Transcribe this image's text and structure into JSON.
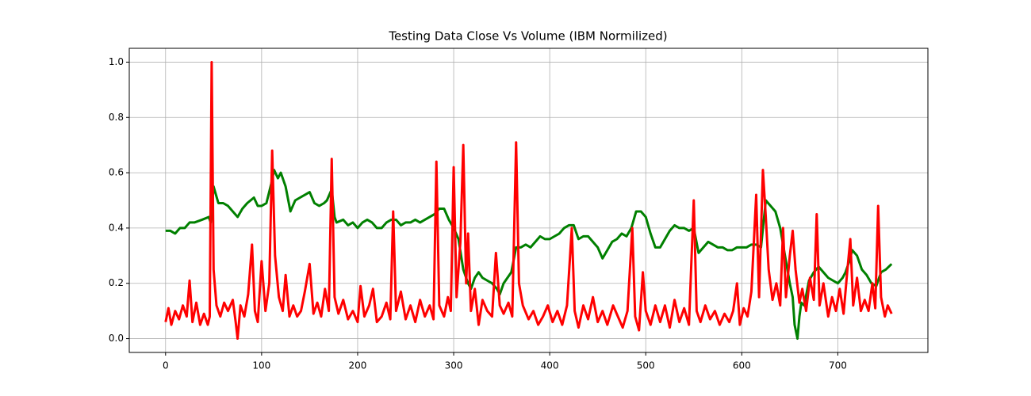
{
  "chart_data": {
    "type": "line",
    "title": "Testing Data Close Vs Volume (IBM Normilized)",
    "xlim": [
      -37.8,
      793.8
    ],
    "ylim": [
      -0.05,
      1.05
    ],
    "xticks": [
      0,
      100,
      200,
      300,
      400,
      500,
      600,
      700
    ],
    "yticks": [
      {
        "value": 0,
        "label": "0.0"
      },
      0.2,
      0.4,
      0.6,
      0.8,
      {
        "value": 1,
        "label": "1.0"
      }
    ],
    "grid": true,
    "series": [
      {
        "color": "#008000",
        "x": [
          0,
          5,
          10,
          15,
          20,
          25,
          30,
          38,
          45,
          47,
          50,
          55,
          60,
          65,
          70,
          75,
          80,
          85,
          92,
          96,
          100,
          105,
          110,
          113,
          117,
          120,
          125,
          130,
          135,
          140,
          145,
          150,
          155,
          160,
          165,
          168,
          173,
          176,
          178,
          185,
          190,
          195,
          200,
          205,
          210,
          215,
          220,
          225,
          230,
          235,
          240,
          245,
          250,
          255,
          260,
          265,
          270,
          275,
          280,
          285,
          290,
          295,
          300,
          305,
          310,
          315,
          318,
          322,
          326,
          330,
          335,
          340,
          345,
          348,
          352,
          356,
          360,
          365,
          370,
          375,
          380,
          385,
          390,
          395,
          400,
          405,
          410,
          415,
          420,
          425,
          430,
          435,
          440,
          445,
          450,
          455,
          460,
          465,
          470,
          475,
          480,
          485,
          490,
          495,
          500,
          505,
          510,
          515,
          520,
          525,
          530,
          535,
          540,
          545,
          550,
          555,
          560,
          565,
          570,
          575,
          580,
          585,
          590,
          595,
          600,
          605,
          610,
          615,
          620,
          625,
          630,
          635,
          640,
          645,
          650,
          653,
          655,
          658,
          660,
          662,
          665,
          670,
          675,
          680,
          685,
          690,
          695,
          700,
          705,
          708,
          712,
          715,
          720,
          725,
          730,
          735,
          740,
          745,
          750,
          756
        ],
        "values": [
          0.39,
          0.39,
          0.38,
          0.4,
          0.4,
          0.42,
          0.42,
          0.43,
          0.44,
          0.42,
          0.55,
          0.49,
          0.49,
          0.48,
          0.46,
          0.44,
          0.47,
          0.49,
          0.51,
          0.48,
          0.48,
          0.49,
          0.56,
          0.61,
          0.58,
          0.6,
          0.55,
          0.46,
          0.5,
          0.51,
          0.52,
          0.53,
          0.49,
          0.48,
          0.49,
          0.5,
          0.54,
          0.44,
          0.42,
          0.43,
          0.41,
          0.42,
          0.4,
          0.42,
          0.43,
          0.42,
          0.4,
          0.4,
          0.42,
          0.43,
          0.43,
          0.41,
          0.42,
          0.42,
          0.43,
          0.42,
          0.43,
          0.44,
          0.45,
          0.47,
          0.47,
          0.43,
          0.4,
          0.36,
          0.25,
          0.2,
          0.18,
          0.22,
          0.24,
          0.22,
          0.21,
          0.2,
          0.18,
          0.16,
          0.2,
          0.22,
          0.24,
          0.33,
          0.33,
          0.34,
          0.33,
          0.35,
          0.37,
          0.36,
          0.36,
          0.37,
          0.38,
          0.4,
          0.41,
          0.41,
          0.36,
          0.37,
          0.37,
          0.35,
          0.33,
          0.29,
          0.32,
          0.35,
          0.36,
          0.38,
          0.37,
          0.4,
          0.46,
          0.46,
          0.44,
          0.38,
          0.33,
          0.33,
          0.36,
          0.39,
          0.41,
          0.4,
          0.4,
          0.39,
          0.4,
          0.31,
          0.33,
          0.35,
          0.34,
          0.33,
          0.33,
          0.32,
          0.32,
          0.33,
          0.33,
          0.33,
          0.34,
          0.34,
          0.33,
          0.5,
          0.48,
          0.46,
          0.4,
          0.3,
          0.2,
          0.15,
          0.05,
          0.0,
          0.08,
          0.13,
          0.12,
          0.21,
          0.24,
          0.26,
          0.24,
          0.22,
          0.21,
          0.2,
          0.22,
          0.24,
          0.28,
          0.32,
          0.3,
          0.25,
          0.23,
          0.2,
          0.19,
          0.24,
          0.25,
          0.27
        ]
      },
      {
        "color": "#ff0000",
        "x": [
          0,
          3,
          6,
          10,
          14,
          18,
          22,
          25,
          28,
          32,
          36,
          40,
          44,
          46,
          48,
          50,
          53,
          57,
          61,
          65,
          70,
          73,
          75,
          78,
          82,
          86,
          90,
          93,
          96,
          100,
          104,
          108,
          111,
          114,
          118,
          122,
          125,
          129,
          133,
          137,
          141,
          145,
          150,
          154,
          158,
          162,
          166,
          170,
          173,
          176,
          180,
          185,
          190,
          195,
          200,
          203,
          207,
          212,
          216,
          220,
          225,
          230,
          234,
          237,
          240,
          245,
          250,
          255,
          260,
          265,
          270,
          275,
          279,
          282,
          285,
          290,
          294,
          297,
          300,
          303,
          307,
          310,
          313,
          315,
          318,
          322,
          326,
          330,
          335,
          340,
          344,
          348,
          352,
          357,
          361,
          365,
          368,
          372,
          378,
          383,
          388,
          393,
          398,
          403,
          408,
          413,
          418,
          423,
          426,
          430,
          435,
          440,
          445,
          450,
          455,
          460,
          466,
          471,
          476,
          481,
          486,
          489,
          493,
          497,
          500,
          505,
          510,
          515,
          520,
          525,
          530,
          535,
          540,
          545,
          550,
          553,
          557,
          562,
          567,
          572,
          577,
          582,
          587,
          591,
          595,
          598,
          602,
          606,
          610,
          615,
          618,
          622,
          625,
          628,
          632,
          636,
          640,
          643,
          646,
          650,
          653,
          656,
          660,
          663,
          667,
          671,
          675,
          678,
          681,
          685,
          690,
          694,
          698,
          702,
          706,
          710,
          713,
          716,
          720,
          724,
          728,
          732,
          736,
          739,
          742,
          745,
          749,
          752,
          756
        ],
        "values": [
          0.06,
          0.11,
          0.05,
          0.1,
          0.07,
          0.12,
          0.08,
          0.21,
          0.06,
          0.13,
          0.05,
          0.09,
          0.05,
          0.08,
          1.0,
          0.25,
          0.12,
          0.08,
          0.13,
          0.1,
          0.14,
          0.06,
          0.0,
          0.12,
          0.08,
          0.16,
          0.34,
          0.1,
          0.06,
          0.28,
          0.1,
          0.2,
          0.68,
          0.3,
          0.15,
          0.1,
          0.23,
          0.08,
          0.12,
          0.08,
          0.1,
          0.17,
          0.27,
          0.09,
          0.13,
          0.08,
          0.18,
          0.1,
          0.65,
          0.15,
          0.09,
          0.14,
          0.07,
          0.1,
          0.06,
          0.19,
          0.08,
          0.12,
          0.18,
          0.06,
          0.08,
          0.13,
          0.07,
          0.46,
          0.1,
          0.17,
          0.07,
          0.12,
          0.06,
          0.14,
          0.08,
          0.12,
          0.07,
          0.64,
          0.12,
          0.08,
          0.15,
          0.1,
          0.62,
          0.15,
          0.35,
          0.7,
          0.2,
          0.38,
          0.1,
          0.18,
          0.05,
          0.14,
          0.1,
          0.08,
          0.31,
          0.12,
          0.09,
          0.13,
          0.08,
          0.71,
          0.2,
          0.12,
          0.07,
          0.1,
          0.05,
          0.08,
          0.12,
          0.06,
          0.1,
          0.05,
          0.12,
          0.4,
          0.1,
          0.04,
          0.12,
          0.07,
          0.15,
          0.06,
          0.1,
          0.05,
          0.12,
          0.08,
          0.04,
          0.1,
          0.4,
          0.08,
          0.03,
          0.24,
          0.1,
          0.05,
          0.12,
          0.06,
          0.12,
          0.04,
          0.14,
          0.06,
          0.11,
          0.05,
          0.5,
          0.1,
          0.06,
          0.12,
          0.07,
          0.1,
          0.05,
          0.09,
          0.06,
          0.1,
          0.2,
          0.05,
          0.11,
          0.08,
          0.17,
          0.52,
          0.15,
          0.61,
          0.44,
          0.25,
          0.14,
          0.2,
          0.12,
          0.4,
          0.15,
          0.3,
          0.39,
          0.25,
          0.13,
          0.18,
          0.1,
          0.22,
          0.14,
          0.45,
          0.12,
          0.2,
          0.08,
          0.15,
          0.1,
          0.18,
          0.09,
          0.25,
          0.36,
          0.12,
          0.22,
          0.1,
          0.14,
          0.1,
          0.2,
          0.11,
          0.48,
          0.15,
          0.08,
          0.12,
          0.09
        ]
      }
    ]
  }
}
